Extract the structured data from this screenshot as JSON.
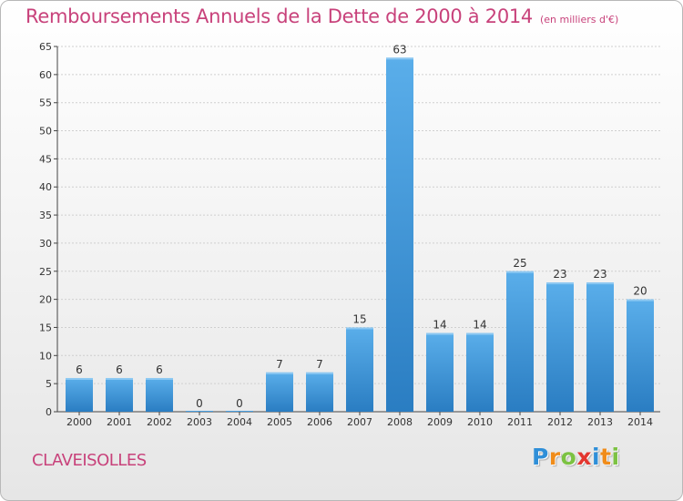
{
  "header": {
    "title": "Remboursements Annuels de la Dette de 2000 à 2014",
    "subtitle": "(en milliers d'€)"
  },
  "footer": {
    "commune": "CLAVEISOLLES",
    "logo_letters": [
      {
        "char": "P",
        "color": "#2f8fd8"
      },
      {
        "char": "r",
        "color": "#f08c1a"
      },
      {
        "char": "o",
        "color": "#7cc242"
      },
      {
        "char": "x",
        "color": "#e3362f"
      },
      {
        "char": "i",
        "color": "#2f8fd8"
      },
      {
        "char": "t",
        "color": "#f08c1a"
      },
      {
        "char": "i",
        "color": "#7cc242"
      }
    ]
  },
  "chart_data": {
    "type": "bar",
    "title": "Remboursements Annuels de la Dette de 2000 à 2014",
    "subtitle": "(en milliers d'€)",
    "categories": [
      "2000",
      "2001",
      "2002",
      "2003",
      "2004",
      "2005",
      "2006",
      "2007",
      "2008",
      "2009",
      "2010",
      "2011",
      "2012",
      "2013",
      "2014"
    ],
    "values": [
      6,
      6,
      6,
      0,
      0,
      7,
      7,
      15,
      63,
      14,
      14,
      25,
      23,
      23,
      20
    ],
    "ylim": [
      0,
      65
    ],
    "yticks": [
      0,
      5,
      10,
      15,
      20,
      25,
      30,
      35,
      40,
      45,
      50,
      55,
      60,
      65
    ],
    "grid": true,
    "bar_color": "#4a9fe0",
    "bar_color_dark": "#2a7fc6"
  }
}
